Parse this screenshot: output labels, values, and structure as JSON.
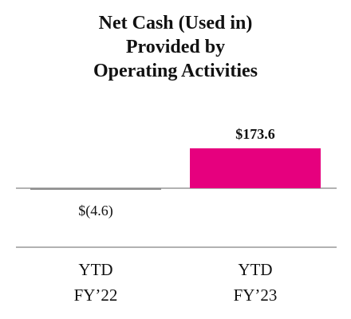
{
  "chart_data": {
    "type": "bar",
    "title_lines": [
      "Net Cash (Used in)",
      "Provided by",
      "Operating Activities"
    ],
    "categories": [
      {
        "line1": "YTD",
        "line2": "FY’22"
      },
      {
        "line1": "YTD",
        "line2": "FY’23"
      }
    ],
    "values": [
      -4.6,
      173.6
    ],
    "data_labels": [
      "$(4.6)",
      "$173.6"
    ],
    "colors": [
      "#8c8c8c",
      "#e6007e"
    ],
    "xlabel": "",
    "ylabel": "",
    "grid": false,
    "legend": "none"
  }
}
